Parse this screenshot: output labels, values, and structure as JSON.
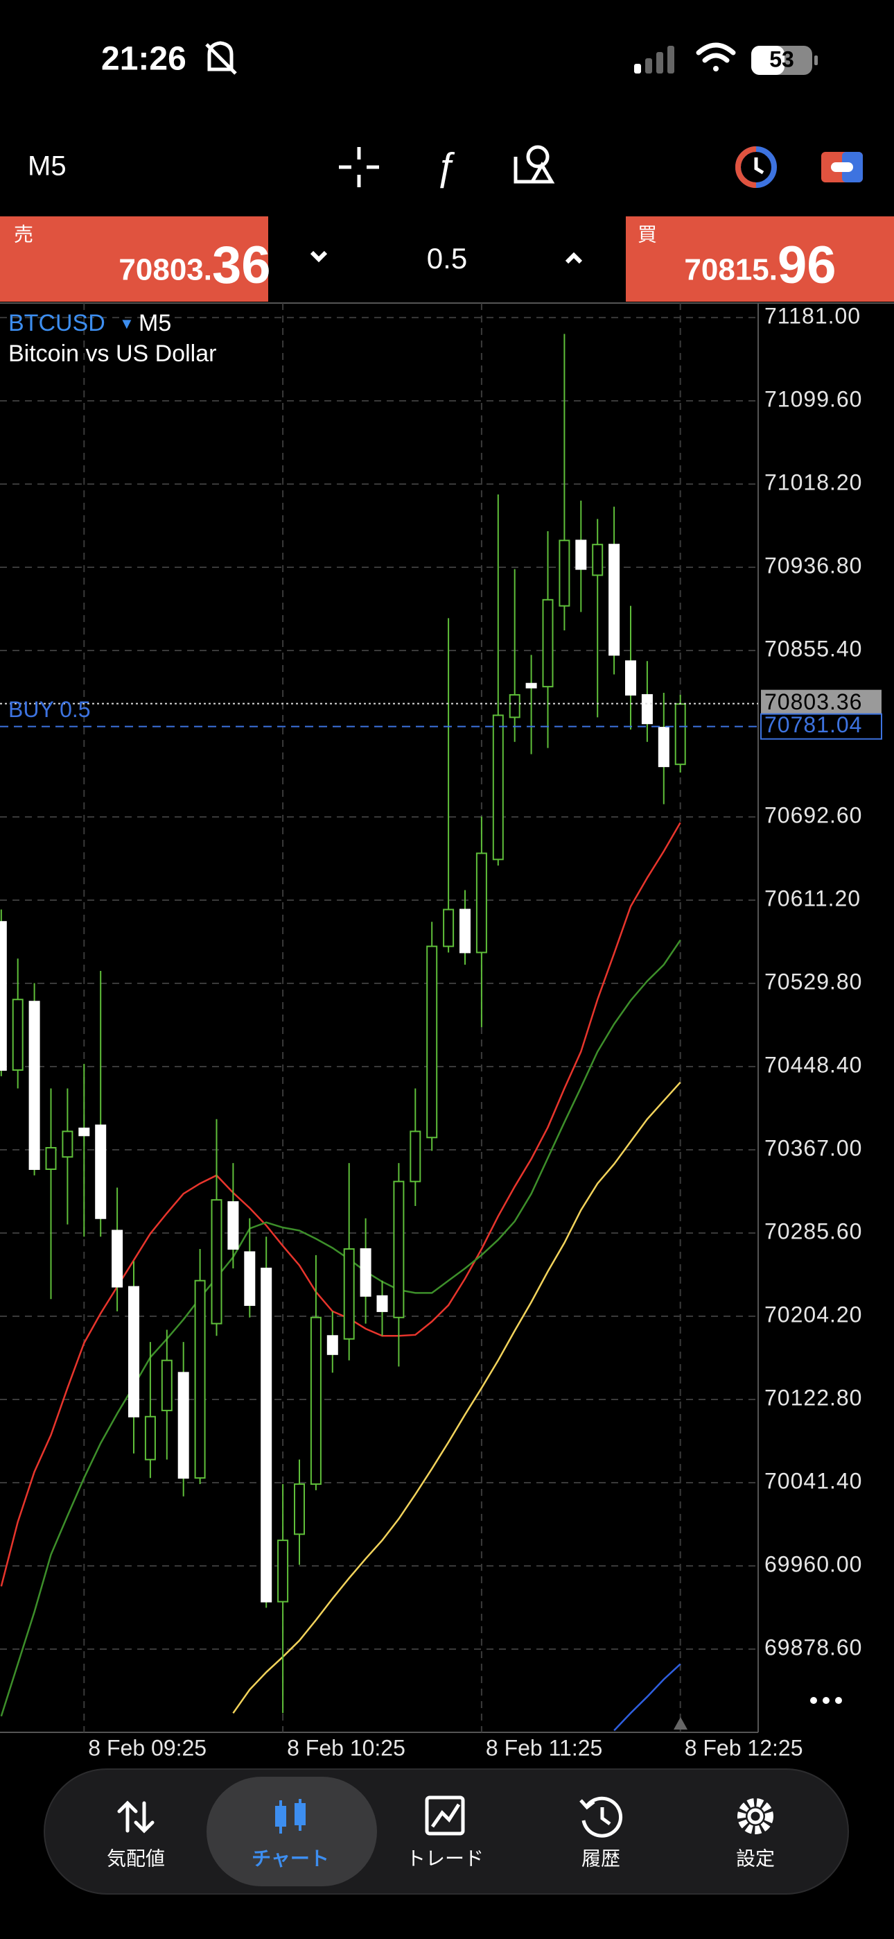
{
  "status_bar": {
    "time": "21:26",
    "battery": "53"
  },
  "toolbar": {
    "timeframe": "M5"
  },
  "trade_panel": {
    "sell": {
      "label": "売",
      "price_main": "70803.",
      "price_big": "36"
    },
    "volume": "0.5",
    "buy": {
      "label": "買",
      "price_main": "70815.",
      "price_big": "96"
    }
  },
  "chart_data": {
    "type": "candlestick",
    "symbol": "BTCUSD",
    "timeframe": "M5",
    "description": "Bitcoin vs US Dollar",
    "categories": [
      null,
      null,
      null,
      null,
      null,
      "8 Feb 09:25",
      null,
      null,
      null,
      null,
      null,
      null,
      null,
      null,
      null,
      null,
      null,
      "8 Feb 10:25",
      null,
      null,
      null,
      null,
      null,
      null,
      null,
      null,
      null,
      null,
      null,
      "8 Feb 11:25",
      null,
      null,
      null,
      null,
      null,
      null,
      null,
      null,
      null,
      null,
      null,
      "8 Feb 12:25"
    ],
    "open": [
      70590,
      70445,
      70512,
      70348,
      70360,
      70388,
      70391,
      70288,
      70233,
      70064,
      70112,
      70149,
      70046,
      70197,
      70316,
      70267,
      70251,
      69925,
      69991,
      70040,
      70185,
      70182,
      70270,
      70224,
      70203,
      70336,
      70379,
      70566,
      70602,
      70560,
      70651,
      70790,
      70823,
      70820,
      70899,
      70963,
      70929,
      70959,
      70845,
      70812,
      70780,
      70744
    ],
    "high": [
      70602,
      70554,
      70530,
      70427,
      70427,
      70451,
      70542,
      70330,
      70258,
      70179,
      70191,
      70179,
      70270,
      70397,
      70354,
      70300,
      70282,
      70040,
      70064,
      70264,
      70209,
      70354,
      70300,
      70239,
      70354,
      70427,
      70590,
      70887,
      70621,
      70693,
      71008,
      70935,
      70851,
      70972,
      71165,
      71002,
      70984,
      70996,
      70899,
      70845,
      70814,
      70812
    ],
    "low": [
      70439,
      70427,
      70342,
      70221,
      70294,
      70282,
      70282,
      70209,
      70070,
      70046,
      70064,
      70028,
      70040,
      70185,
      70251,
      70203,
      69919,
      69816,
      69961,
      70034,
      70149,
      70161,
      70197,
      70185,
      70155,
      70312,
      70366,
      70560,
      70548,
      70487,
      70645,
      70766,
      70754,
      70760,
      70875,
      70893,
      70790,
      70832,
      70778,
      70766,
      70705,
      70736
    ],
    "close": [
      70445,
      70514,
      70348,
      70369,
      70385,
      70381,
      70300,
      70233,
      70106,
      70106,
      70161,
      70046,
      70239,
      70318,
      70270,
      70215,
      69925,
      69985,
      70040,
      70203,
      70167,
      70270,
      70224,
      70209,
      70336,
      70385,
      70566,
      70602,
      70560,
      70657,
      70792,
      70812,
      70819,
      70905,
      70963,
      70935,
      70959,
      70851,
      70812,
      70784,
      70742,
      70803
    ],
    "up_color": "#000000",
    "up_outline": "#5fbf3a",
    "down_color": "#ffffff",
    "wick_color": "#5fbf3a",
    "indicators": [
      {
        "color": "#e8352c",
        "values": [
          69940,
          70003,
          70052,
          70088,
          70134,
          70178,
          70207,
          70233,
          70259,
          70285,
          70305,
          70324,
          70334,
          70342,
          70325,
          70310,
          70293,
          70273,
          70254,
          70228,
          70209,
          70202,
          70192,
          70185,
          70185,
          70186,
          70199,
          70215,
          70241,
          70270,
          70302,
          70331,
          70358,
          70389,
          70427,
          70463,
          70514,
          70559,
          70605,
          70633,
          70659,
          70687
        ]
      },
      {
        "color": "#3d8f2a",
        "values": [
          69813,
          69864,
          69915,
          69971,
          70009,
          70046,
          70080,
          70109,
          70136,
          70164,
          70182,
          70201,
          70222,
          70242,
          70262,
          70290,
          70296,
          70291,
          70288,
          70280,
          70271,
          70260,
          70248,
          70238,
          70230,
          70227,
          70227,
          70239,
          70251,
          70264,
          70279,
          70297,
          70324,
          70359,
          70394,
          70428,
          70463,
          70490,
          70513,
          70532,
          70548,
          70572
        ]
      },
      {
        "color": "#f2d35b",
        "values": [
          null,
          null,
          null,
          null,
          null,
          null,
          null,
          null,
          null,
          null,
          null,
          null,
          null,
          null,
          69816,
          69839,
          69856,
          69871,
          69887,
          69907,
          69928,
          69948,
          69967,
          69985,
          70006,
          70030,
          70055,
          70081,
          70108,
          70134,
          70161,
          70190,
          70218,
          70248,
          70276,
          70308,
          70334,
          70353,
          70375,
          70397,
          70415,
          70433
        ]
      },
      {
        "color": "#2f5fe0",
        "values": [
          null,
          null,
          null,
          null,
          null,
          null,
          null,
          null,
          null,
          null,
          null,
          null,
          null,
          null,
          null,
          null,
          null,
          null,
          null,
          null,
          null,
          null,
          null,
          null,
          null,
          null,
          null,
          null,
          null,
          null,
          null,
          null,
          null,
          null,
          null,
          null,
          null,
          69799,
          69816,
          69832,
          69849,
          69864
        ]
      }
    ],
    "bid": 70803.36,
    "position": {
      "label": "BUY 0.5",
      "price": 70781.04,
      "color": "#3d73e0"
    },
    "ylim": [
      69797.2,
      71195.2
    ],
    "yticks": [
      {
        "value": 71181,
        "label": "71181.00"
      },
      {
        "value": 71099.6,
        "label": "71099.60"
      },
      {
        "value": 71018.2,
        "label": "71018.20"
      },
      {
        "value": 70936.8,
        "label": "70936.80"
      },
      {
        "value": 70855.4,
        "label": "70855.40"
      },
      {
        "value": 70692.6,
        "label": "70692.60"
      },
      {
        "value": 70611.2,
        "label": "70611.20"
      },
      {
        "value": 70529.8,
        "label": "70529.80"
      },
      {
        "value": 70448.4,
        "label": "70448.40"
      },
      {
        "value": 70367,
        "label": "70367.00"
      },
      {
        "value": 70285.6,
        "label": "70285.60"
      },
      {
        "value": 70204.2,
        "label": "70204.20"
      },
      {
        "value": 70122.8,
        "label": "70122.80"
      },
      {
        "value": 70041.4,
        "label": "70041.40"
      },
      {
        "value": 69960,
        "label": "69960.00"
      },
      {
        "value": 69878.6,
        "label": "69878.60"
      }
    ],
    "grid": true
  },
  "nav": {
    "items": [
      {
        "label": "気配値"
      },
      {
        "label": "チャート"
      },
      {
        "label": "トレード"
      },
      {
        "label": "履歴"
      },
      {
        "label": "設定"
      }
    ],
    "active": 1
  }
}
